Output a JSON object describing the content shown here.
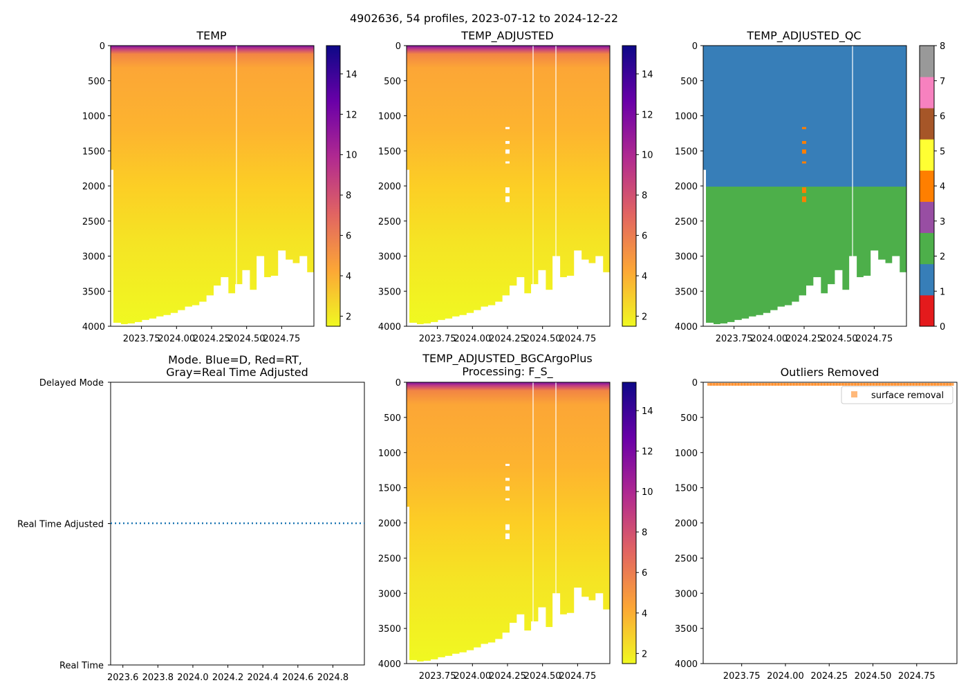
{
  "figure": {
    "title": "4902636, 54 profiles, 2023-07-12 to 2024-12-22"
  },
  "colors": {
    "plasma": [
      "#0d0887",
      "#6a00a8",
      "#b12a90",
      "#e16462",
      "#fca636",
      "#f0f921"
    ],
    "qc": [
      "#e41a1c",
      "#377eb8",
      "#4daf4a",
      "#984ea3",
      "#ff7f00",
      "#ffff33",
      "#a65628",
      "#f781bf",
      "#999999"
    ],
    "mode_line": "#1f77b4",
    "outlier": "#ff7f0e"
  },
  "chart_data": [
    {
      "type": "heatmap",
      "title": "TEMP",
      "ylim": [
        4000,
        0
      ],
      "yticks": [
        "0",
        "500",
        "1000",
        "1500",
        "2000",
        "2500",
        "3000",
        "3500",
        "4000"
      ],
      "xlim": [
        2023.53,
        2024.98
      ],
      "xticks": [
        "2023.75",
        "2024.00",
        "2024.25",
        "2024.50",
        "2024.75"
      ],
      "colorbar": {
        "min": 1.5,
        "max": 15.4,
        "ticks": [
          "2",
          "4",
          "6",
          "8",
          "10",
          "12",
          "14"
        ]
      },
      "profile_max_depth": [
        3950,
        3970,
        3960,
        3940,
        3910,
        3890,
        3860,
        3840,
        3810,
        3770,
        3720,
        3700,
        3650,
        3560,
        3420,
        3300,
        3530,
        3400,
        3200,
        3480,
        3000,
        3300,
        3280,
        2920,
        3050,
        3100,
        3000,
        3230
      ]
    },
    {
      "type": "heatmap",
      "title": "TEMP_ADJUSTED",
      "ylim": [
        4000,
        0
      ],
      "yticks": [
        "0",
        "500",
        "1000",
        "1500",
        "2000",
        "2500",
        "3000",
        "3500",
        "4000"
      ],
      "xlim": [
        2023.53,
        2024.98
      ],
      "xticks": [
        "2023.75",
        "2024.00",
        "2024.25",
        "2024.50",
        "2024.75"
      ],
      "colorbar": {
        "min": 1.5,
        "max": 15.4,
        "ticks": [
          "2",
          "4",
          "6",
          "8",
          "10",
          "12",
          "14"
        ]
      },
      "missing_segments_year": 2024.25,
      "missing_segments_depth": [
        [
          1160,
          1190
        ],
        [
          1360,
          1400
        ],
        [
          1480,
          1540
        ],
        [
          1650,
          1680
        ],
        [
          2020,
          2100
        ],
        [
          2150,
          2230
        ]
      ]
    },
    {
      "type": "heatmap",
      "title": "TEMP_ADJUSTED_QC",
      "ylim": [
        4000,
        0
      ],
      "yticks": [
        "0",
        "500",
        "1000",
        "1500",
        "2000",
        "2500",
        "3000",
        "3500",
        "4000"
      ],
      "xlim": [
        2023.53,
        2024.98
      ],
      "xticks": [
        "2023.75",
        "2024.00",
        "2024.25",
        "2024.50",
        "2024.75"
      ],
      "qc_boundary_depth": 2000,
      "upper_flag": 1,
      "lower_flag": 2,
      "colorbar": {
        "ticks": [
          "0",
          "1",
          "2",
          "3",
          "4",
          "5",
          "6",
          "7",
          "8"
        ]
      }
    },
    {
      "type": "line",
      "title": "Mode. Blue=D, Red=RT,",
      "title_line2": "Gray=Real Time Adjusted",
      "ylabels": [
        "Delayed Mode",
        "Real Time Adjusted",
        "Real Time"
      ],
      "xticks": [
        "2023.6",
        "2023.8",
        "2024.0",
        "2024.2",
        "2024.4",
        "2024.6",
        "2024.8"
      ],
      "xlim": [
        2023.53,
        2024.98
      ],
      "mode_value": "Real Time Adjusted"
    },
    {
      "type": "heatmap",
      "title": "TEMP_ADJUSTED_BGCArgoPlus",
      "title_line2": "Processing: F_S_",
      "ylim": [
        4000,
        0
      ],
      "yticks": [
        "0",
        "500",
        "1000",
        "1500",
        "2000",
        "2500",
        "3000",
        "3500",
        "4000"
      ],
      "xlim": [
        2023.53,
        2024.98
      ],
      "xticks": [
        "2023.75",
        "2024.00",
        "2024.25",
        "2024.50",
        "2024.75"
      ],
      "colorbar": {
        "min": 1.5,
        "max": 15.4,
        "ticks": [
          "2",
          "4",
          "6",
          "8",
          "10",
          "12",
          "14"
        ]
      }
    },
    {
      "type": "scatter",
      "title": "Outliers Removed",
      "ylim": [
        4000,
        0
      ],
      "yticks": [
        "0",
        "500",
        "1000",
        "1500",
        "2000",
        "2500",
        "3000",
        "3500",
        "4000"
      ],
      "xlim": [
        2023.53,
        2024.98
      ],
      "xticks": [
        "2023.75",
        "2024.00",
        "2024.25",
        "2024.50",
        "2024.75"
      ],
      "legend": "surface removal",
      "legend_position": "top-right",
      "outlier_depth_range": [
        0,
        25
      ]
    }
  ]
}
